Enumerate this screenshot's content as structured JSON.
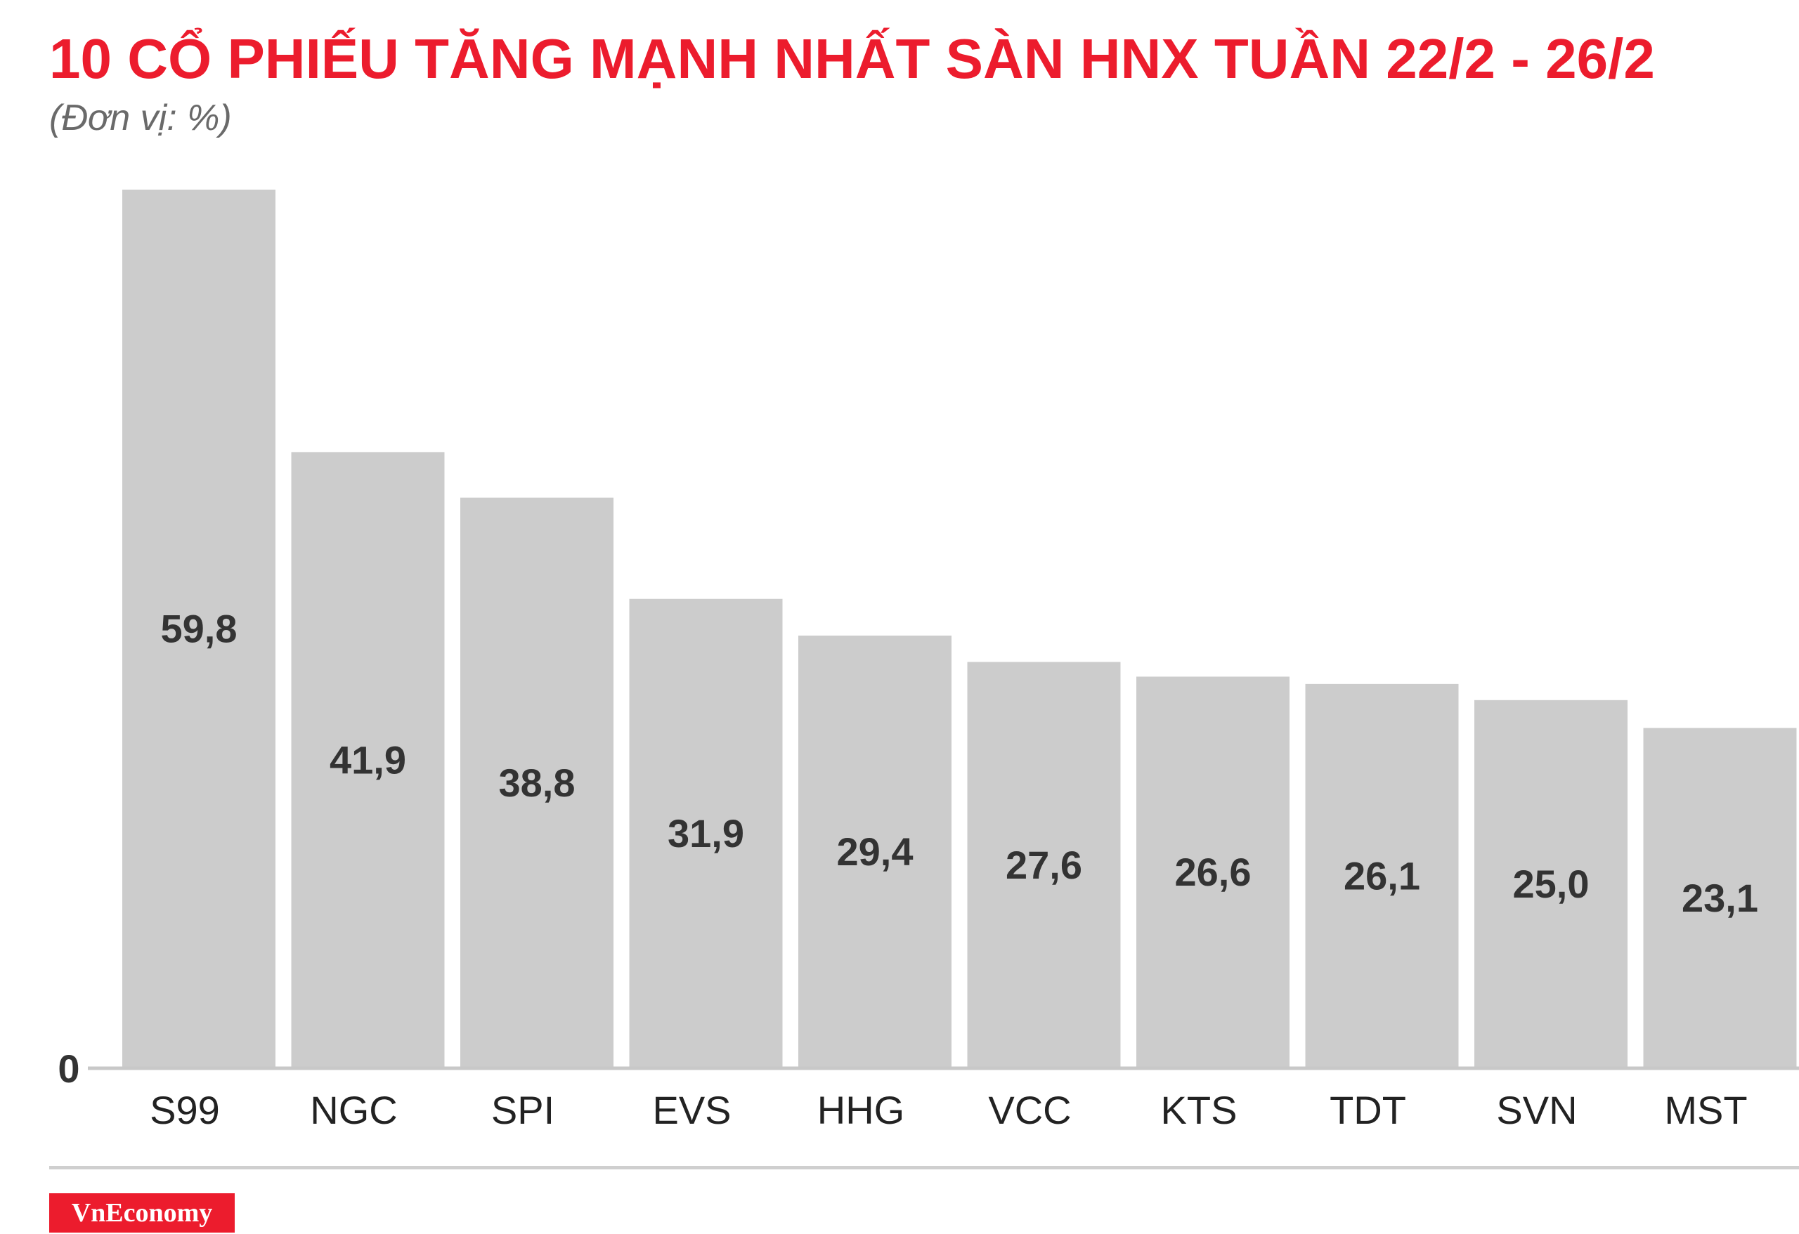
{
  "header": {
    "title": "10 CỔ PHIẾU TĂNG MẠNH NHẤT SÀN HNX TUẦN 22/2 - 26/2",
    "subtitle": "(Đơn vị: %)"
  },
  "brand": {
    "label": "VnEconomy"
  },
  "colors": {
    "title": "#ec1c2d",
    "bar": "#cccccc",
    "value_label": "#333333",
    "axis": "#c8c8c8",
    "brand_bg": "#ec1c2d"
  },
  "chart_data": {
    "type": "bar",
    "title": "10 CỔ PHIẾU TĂNG MẠNH NHẤT SÀN HNX TUẦN 22/2 - 26/2",
    "subtitle": "(Đơn vị: %)",
    "xlabel": "",
    "ylabel": "",
    "categories": [
      "S99",
      "NGC",
      "SPI",
      "EVS",
      "HHG",
      "VCC",
      "KTS",
      "TDT",
      "SVN",
      "MST"
    ],
    "values": [
      59.8,
      41.9,
      38.8,
      31.9,
      29.4,
      27.6,
      26.6,
      26.1,
      25.0,
      23.1
    ],
    "value_labels": [
      "59,8",
      "41,9",
      "38,8",
      "31,9",
      "29,4",
      "27,6",
      "26,6",
      "26,1",
      "25,0",
      "23,1"
    ],
    "y_tick_labels": [
      "0"
    ],
    "ylim": [
      0,
      60
    ],
    "grid": false,
    "legend": "none"
  }
}
